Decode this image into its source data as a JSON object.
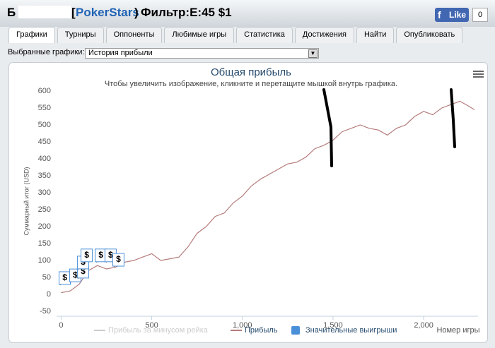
{
  "header": {
    "prefix": "Б",
    "site_open": "[",
    "site": "PokerStars",
    "site_close": ")",
    "filter": "Фильтр:E:45 $1",
    "like": "Like",
    "like_count": "0"
  },
  "tabs": [
    "Графики",
    "Турниры",
    "Оппоненты",
    "Любимые игры",
    "Статистика",
    "Достижения",
    "Найти",
    "Опубликовать"
  ],
  "selector": {
    "label": "Выбранные графики:",
    "value": "История прибыли"
  },
  "chart_data": {
    "type": "line",
    "title": "Общая прибыль",
    "subtitle": "Чтобы увеличить изображение, кликните и перетащите мышкой внутрь графика.",
    "x_label": "Номер игры",
    "y_label": "Суммарный итог (USD)",
    "xlim": [
      -25,
      2300
    ],
    "xticks": [
      0,
      500,
      {
        "value": 1000,
        "label": "1,000"
      },
      {
        "value": 1500,
        "label": "1,500"
      },
      {
        "value": 2000,
        "label": "2,000"
      }
    ],
    "ylim": [
      -50,
      600
    ],
    "yticks": [
      -50,
      0,
      50,
      100,
      150,
      200,
      250,
      300,
      350,
      400,
      450,
      500,
      550,
      600
    ],
    "grid": false,
    "series": [
      {
        "name": "Прибыль за минусом рейка",
        "color": "#cccccc",
        "visible": false
      },
      {
        "name": "Прибыль",
        "color": "#b57b7b",
        "x": [
          0,
          50,
          100,
          150,
          200,
          250,
          300,
          350,
          400,
          450,
          500,
          550,
          600,
          650,
          700,
          750,
          800,
          850,
          900,
          950,
          1000,
          1050,
          1100,
          1150,
          1200,
          1250,
          1300,
          1350,
          1400,
          1450,
          1500,
          1550,
          1600,
          1650,
          1700,
          1750,
          1800,
          1850,
          1900,
          1950,
          2000,
          2050,
          2100,
          2150,
          2200,
          2250,
          2280
        ],
        "values": [
          5,
          10,
          30,
          70,
          85,
          75,
          80,
          95,
          100,
          110,
          120,
          100,
          105,
          110,
          140,
          180,
          200,
          230,
          240,
          270,
          290,
          320,
          340,
          355,
          370,
          385,
          390,
          405,
          430,
          440,
          455,
          480,
          490,
          500,
          490,
          485,
          470,
          490,
          500,
          525,
          540,
          530,
          550,
          560,
          570,
          555,
          545
        ]
      },
      {
        "name": "Значительные выигрыши",
        "color": "#4a90d9",
        "flag_label": "$",
        "x": [
          20,
          78,
          121,
          121,
          141,
          219,
          273,
          316
        ],
        "values": [
          48,
          56,
          67,
          94,
          115,
          115,
          115,
          102
        ]
      }
    ]
  }
}
